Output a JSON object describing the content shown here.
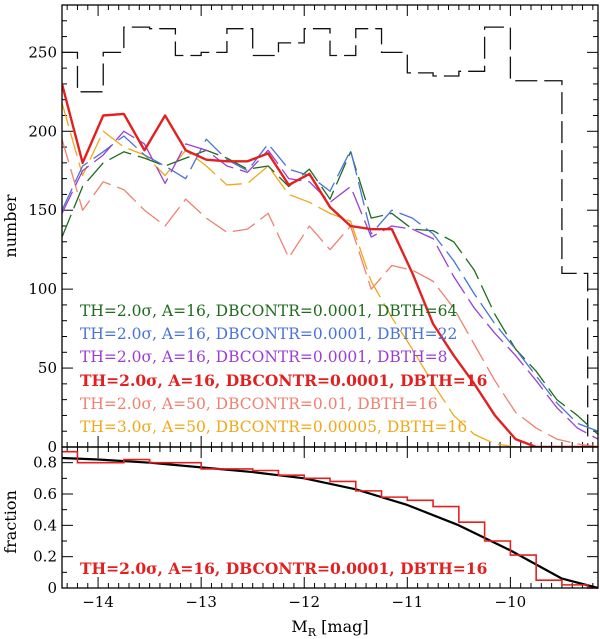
{
  "chart_data": [
    {
      "type": "line",
      "panel": "top",
      "xlabel": "M_R [mag]",
      "ylabel": "number",
      "xlim": [
        -14.35,
        -9.15
      ],
      "ylim": [
        0,
        280
      ],
      "yticks": [
        "0",
        "50",
        "100",
        "150",
        "200",
        "250"
      ],
      "x": [
        -14.35,
        -14.15,
        -13.95,
        -13.75,
        -13.55,
        -13.35,
        -13.15,
        -12.95,
        -12.75,
        -12.55,
        -12.35,
        -12.15,
        -11.95,
        -11.75,
        -11.55,
        -11.35,
        -11.15,
        -10.95,
        -10.75,
        -10.55,
        -10.35,
        -10.15,
        -9.95,
        -9.75,
        -9.55,
        -9.35,
        -9.15
      ],
      "series": [
        {
          "name": "TH=2.0σ, A=16, DBCONTR=0.0001, DBTH=64",
          "color": "#1e6b1e",
          "style": "dashed",
          "width": 1.3,
          "values": [
            133,
            165,
            180,
            187,
            183,
            178,
            183,
            188,
            183,
            176,
            178,
            165,
            176,
            157,
            187,
            145,
            148,
            138,
            137,
            130,
            112,
            84,
            62,
            48,
            30,
            20,
            8
          ]
        },
        {
          "name": "TH=2.0σ, A=16, DBCONTR=0.0001, DBTH=22",
          "color": "#4a72d8",
          "style": "dashed",
          "width": 1.3,
          "values": [
            150,
            178,
            187,
            197,
            185,
            178,
            170,
            195,
            182,
            175,
            192,
            176,
            172,
            162,
            188,
            135,
            150,
            145,
            135,
            118,
            97,
            78,
            62,
            45,
            28,
            15,
            10
          ]
        },
        {
          "name": "TH=2.0σ, A=16, DBCONTR=0.0001, DBTH=8",
          "color": "#9b3fd4",
          "style": "dashed",
          "width": 1.3,
          "values": [
            148,
            175,
            185,
            200,
            192,
            167,
            192,
            188,
            178,
            174,
            188,
            170,
            168,
            155,
            165,
            133,
            140,
            138,
            132,
            108,
            88,
            72,
            58,
            42,
            25,
            12,
            5
          ]
        },
        {
          "name": "TH=2.0σ, A=16, DBCONTR=0.0001, DBTH=16",
          "color": "#e32020",
          "style": "solid",
          "width": 2.4,
          "values": [
            230,
            180,
            210,
            211,
            188,
            210,
            188,
            182,
            181,
            181,
            186,
            166,
            173,
            152,
            140,
            138,
            138,
            110,
            78,
            58,
            40,
            20,
            5,
            0,
            0,
            0,
            0
          ]
        },
        {
          "name": "TH=2.0σ, A=50, DBCONTR=0.01, DBTH=16",
          "color": "#f08070",
          "style": "dashed",
          "width": 1.3,
          "values": [
            195,
            150,
            168,
            163,
            150,
            140,
            157,
            145,
            136,
            138,
            148,
            120,
            140,
            125,
            140,
            100,
            115,
            112,
            105,
            88,
            65,
            42,
            22,
            12,
            5,
            2,
            0
          ]
        },
        {
          "name": "TH=3.0σ, A=50, DBCONTR=0.00005, DBTH=16",
          "color": "#f0a818",
          "style": "dashed",
          "width": 1.3,
          "values": [
            218,
            172,
            200,
            190,
            185,
            172,
            188,
            178,
            166,
            167,
            178,
            160,
            155,
            148,
            143,
            105,
            82,
            62,
            40,
            20,
            8,
            2,
            0,
            0,
            0,
            0,
            0
          ]
        }
      ],
      "histogram": {
        "name": "input",
        "color": "#111111",
        "style": "dashed",
        "bin_edges": [
          -14.35,
          -14.2,
          -13.95,
          -13.75,
          -13.5,
          -13.25,
          -13.0,
          -12.75,
          -12.5,
          -12.25,
          -12.0,
          -11.75,
          -11.5,
          -11.25,
          -11.0,
          -10.75,
          -10.5,
          -10.25,
          -10.0,
          -9.75,
          -9.5,
          -9.25,
          -9.15
        ],
        "counts": [
          250,
          225,
          250,
          266,
          265,
          248,
          250,
          265,
          248,
          256,
          265,
          248,
          265,
          250,
          237,
          235,
          238,
          266,
          232,
          232,
          110,
          0
        ]
      }
    },
    {
      "type": "line",
      "panel": "bottom",
      "xlabel": "M_R [mag]",
      "ylabel": "fraction",
      "xlim": [
        -14.35,
        -9.15
      ],
      "ylim": [
        0,
        0.9
      ],
      "xticks": [
        "-14",
        "-13",
        "-12",
        "-11",
        "-10"
      ],
      "yticks": [
        "0",
        "0.2",
        "0.4",
        "0.6",
        "0.8"
      ],
      "annotation": "TH=2.0σ, A=16, DBCONTR=0.0001, DBTH=16",
      "series": [
        {
          "name": "fit",
          "color": "#000000",
          "style": "solid",
          "x": [
            -14.35,
            -14.0,
            -13.5,
            -13.0,
            -12.5,
            -12.0,
            -11.5,
            -11.0,
            -10.5,
            -10.0,
            -9.5,
            -9.15
          ],
          "values": [
            0.83,
            0.82,
            0.8,
            0.77,
            0.74,
            0.7,
            0.63,
            0.53,
            0.4,
            0.24,
            0.06,
            0.0
          ]
        },
        {
          "name": "TH=2.0σ, A=16, DBCONTR=0.0001, DBTH=16 fraction",
          "color": "#e32020",
          "style": "step",
          "bin_edges": [
            -14.35,
            -14.2,
            -13.95,
            -13.75,
            -13.5,
            -13.25,
            -13.0,
            -12.75,
            -12.5,
            -12.25,
            -12.0,
            -11.75,
            -11.5,
            -11.25,
            -11.0,
            -10.75,
            -10.5,
            -10.25,
            -10.0,
            -9.75,
            -9.5,
            -9.25,
            -9.15
          ],
          "values": [
            0.87,
            0.8,
            0.8,
            0.82,
            0.8,
            0.8,
            0.76,
            0.76,
            0.75,
            0.72,
            0.7,
            0.68,
            0.62,
            0.58,
            0.56,
            0.52,
            0.42,
            0.3,
            0.21,
            0.05,
            0.02,
            0.0
          ]
        }
      ]
    }
  ]
}
